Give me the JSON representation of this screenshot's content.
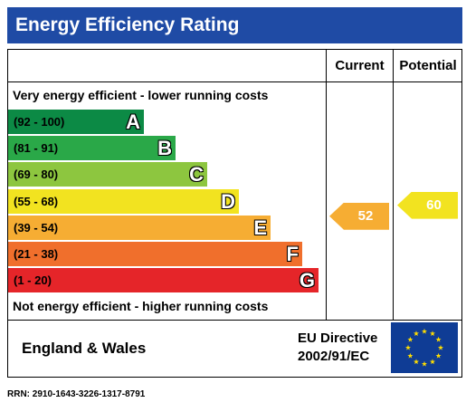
{
  "title": "Energy Efficiency Rating",
  "columns": {
    "current": "Current",
    "potential": "Potential"
  },
  "top_caption": "Very energy efficient - lower running costs",
  "bottom_caption": "Not energy efficient - higher running costs",
  "bands": [
    {
      "range": "(92 - 100)",
      "letter": "A",
      "color": "#0c8a45"
    },
    {
      "range": "(81 - 91)",
      "letter": "B",
      "color": "#2aa848"
    },
    {
      "range": "(69 - 80)",
      "letter": "C",
      "color": "#8dc63f"
    },
    {
      "range": "(55 - 68)",
      "letter": "D",
      "color": "#f2e320"
    },
    {
      "range": "(39 - 54)",
      "letter": "E",
      "color": "#f6ad33"
    },
    {
      "range": "(21 - 38)",
      "letter": "F",
      "color": "#f06f2c"
    },
    {
      "range": "(1 - 20)",
      "letter": "G",
      "color": "#e52529"
    }
  ],
  "current": {
    "value": "52",
    "band": "E",
    "color": "#f6ad33"
  },
  "potential": {
    "value": "60",
    "band": "D",
    "color": "#f2e320"
  },
  "footer": {
    "region": "England & Wales",
    "directive_line1": "EU Directive",
    "directive_line2": "2002/91/EC",
    "flag_icon": "eu-flag-icon"
  },
  "rrn": "RRN: 2910-1643-3226-1317-8791"
}
